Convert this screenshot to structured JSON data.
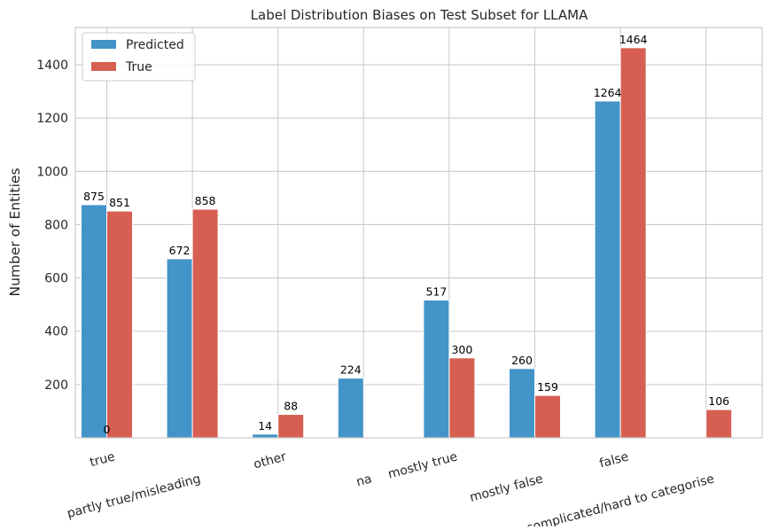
{
  "chart_data": {
    "type": "bar",
    "title": "Label Distribution Biases on Test Subset for LLAMA",
    "xlabel": "",
    "ylabel": "Number of Entities",
    "categories": [
      "true",
      "partly true/misleading",
      "other",
      "na",
      "mostly true",
      "mostly false",
      "false",
      "complicated/hard to categorise"
    ],
    "series": [
      {
        "name": "Predicted",
        "color": "#4394c8",
        "values": [
          875,
          672,
          14,
          224,
          517,
          260,
          1264,
          0
        ],
        "labels": [
          "875",
          "672",
          "14",
          "224",
          "517",
          "260",
          "1264",
          ""
        ]
      },
      {
        "name": "True",
        "color": "#d65f52",
        "values": [
          851,
          858,
          88,
          0,
          300,
          159,
          1464,
          106
        ],
        "labels": [
          "851",
          "858",
          "88",
          "",
          "300",
          "159",
          "1464",
          "106"
        ]
      }
    ],
    "extra_labels": [
      {
        "text": "0",
        "category": "true",
        "value": 0
      }
    ],
    "ylim": [
      0,
      1540
    ],
    "yticks": [
      200,
      400,
      600,
      800,
      1000,
      1200,
      1400
    ],
    "grid": true,
    "legend": "top-left"
  }
}
